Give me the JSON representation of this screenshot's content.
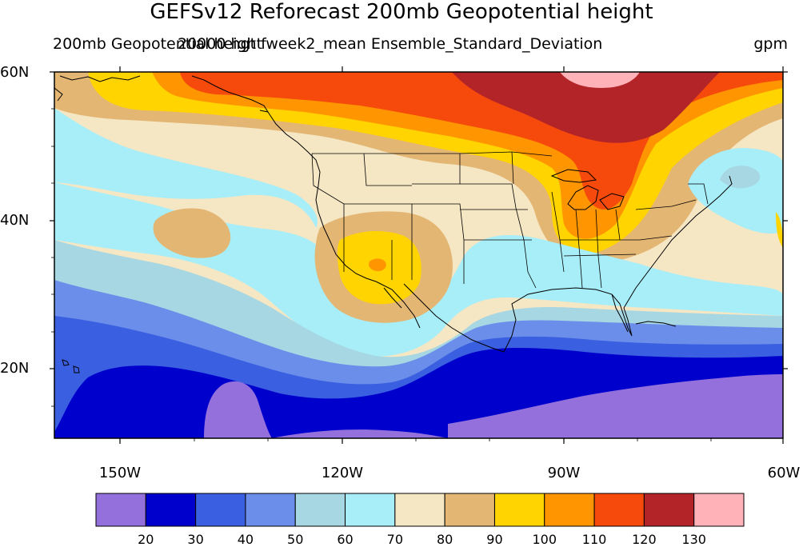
{
  "title": "GEFSv12 Reforecast 200mb Geopotential height",
  "left_subtitle": "200mb Geopotential height",
  "center_subtitle": "20000 hgt fweek2_mean Ensemble_Standard_Deviation",
  "units": "gpm",
  "lat_labels": [
    "60N",
    "40N",
    "20N"
  ],
  "lon_labels": [
    "150W",
    "120W",
    "90W",
    "60W"
  ],
  "colorbar": {
    "levels": [
      "20",
      "30",
      "40",
      "50",
      "60",
      "70",
      "80",
      "90",
      "100",
      "110",
      "120",
      "130"
    ],
    "colors": [
      "#9370DB",
      "#0000CD",
      "#3A5FE0",
      "#6B8EEA",
      "#A6D7E3",
      "#A8EEF8",
      "#F5E6C4",
      "#E3B673",
      "#FFD400",
      "#FF9500",
      "#F64A0C",
      "#B22428",
      "#FFB3B8"
    ]
  },
  "colors": {
    "land_line": "#000000",
    "background": "#ffffff"
  }
}
